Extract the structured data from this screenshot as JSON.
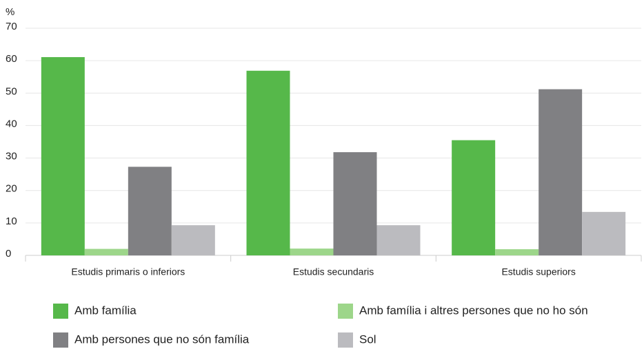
{
  "chart_data": {
    "type": "bar",
    "y_label": "%",
    "categories": [
      "Estudis primaris o inferiors",
      "Estudis secundaris",
      "Estudis superiors"
    ],
    "series": [
      {
        "name": "Amb família",
        "color": "#56b84a",
        "values": [
          61.1,
          56.9,
          35.5
        ]
      },
      {
        "name": "Amb família i altres persones que no ho són",
        "color": "#9dd68a",
        "values": [
          2,
          2.1,
          1.9
        ]
      },
      {
        "name": "Amb persones que no són família",
        "color": "#808083",
        "values": [
          27.3,
          31.8,
          51.2
        ]
      },
      {
        "name": "Sol",
        "color": "#bbbbbf",
        "values": [
          9.3,
          9.3,
          13.4
        ]
      }
    ],
    "ylim": [
      0,
      70
    ],
    "yticks": [
      0,
      10,
      20,
      30,
      40,
      50,
      60,
      70
    ],
    "grid": true
  }
}
